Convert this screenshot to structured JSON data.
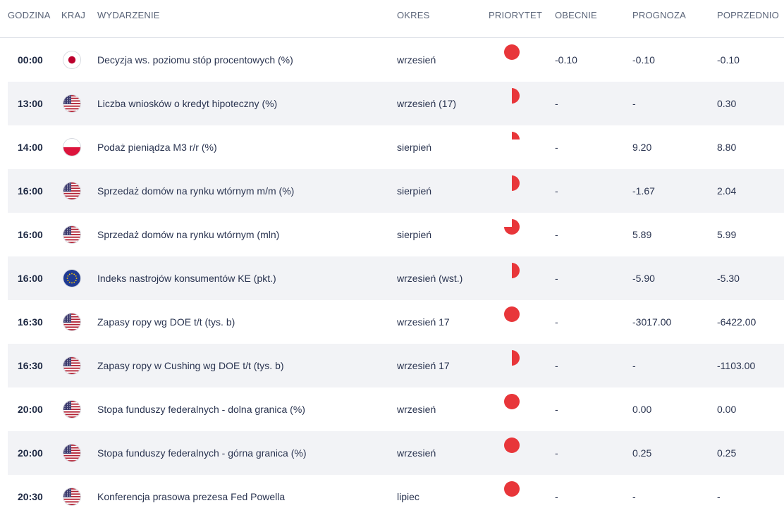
{
  "header": {
    "time": "GODZINA",
    "country": "KRAJ",
    "event": "WYDARZENIE",
    "period": "OKRES",
    "priority": "PRIORYTET",
    "actual": "OBECNIE",
    "forecast": "PROGNOZA",
    "previous": "POPRZEDNIO"
  },
  "colors": {
    "priority": "#e8363a",
    "row_alt": "#f2f3f6"
  },
  "rows": [
    {
      "time": "00:00",
      "country": "jp-flag",
      "event": "Decyzja ws. poziomu stóp procentowych (%)",
      "period": "wrzesień",
      "priority": 1.0,
      "actual": "-0.10",
      "forecast": "-0.10",
      "previous": "-0.10"
    },
    {
      "time": "13:00",
      "country": "us-flag",
      "event": "Liczba wniosków o kredyt hipoteczny (%)",
      "period": "wrzesień (17)",
      "priority": 0.5,
      "actual": "-",
      "forecast": "-",
      "previous": "0.30"
    },
    {
      "time": "14:00",
      "country": "pl-flag",
      "event": "Podaż pieniądza M3 r/r (%)",
      "period": "sierpień",
      "priority": 0.25,
      "actual": "-",
      "forecast": "9.20",
      "previous": "8.80"
    },
    {
      "time": "16:00",
      "country": "us-flag",
      "event": "Sprzedaż domów na rynku wtórnym m/m (%)",
      "period": "sierpień",
      "priority": 0.5,
      "actual": "-",
      "forecast": "-1.67",
      "previous": "2.04"
    },
    {
      "time": "16:00",
      "country": "us-flag",
      "event": "Sprzedaż domów na rynku wtórnym (mln)",
      "period": "sierpień",
      "priority": 0.75,
      "actual": "-",
      "forecast": "5.89",
      "previous": "5.99"
    },
    {
      "time": "16:00",
      "country": "eu-flag",
      "event": "Indeks nastrojów konsumentów KE (pkt.)",
      "period": "wrzesień (wst.)",
      "priority": 0.5,
      "actual": "-",
      "forecast": "-5.90",
      "previous": "-5.30"
    },
    {
      "time": "16:30",
      "country": "us-flag",
      "event": "Zapasy ropy wg DOE t/t (tys. b)",
      "period": "wrzesień 17",
      "priority": 1.0,
      "actual": "-",
      "forecast": "-3017.00",
      "previous": "-6422.00"
    },
    {
      "time": "16:30",
      "country": "us-flag",
      "event": "Zapasy ropy w Cushing wg DOE t/t (tys. b)",
      "period": "wrzesień 17",
      "priority": 0.5,
      "actual": "-",
      "forecast": "-",
      "previous": "-1103.00"
    },
    {
      "time": "20:00",
      "country": "us-flag",
      "event": "Stopa funduszy federalnych - dolna granica (%)",
      "period": "wrzesień",
      "priority": 1.0,
      "actual": "-",
      "forecast": "0.00",
      "previous": "0.00"
    },
    {
      "time": "20:00",
      "country": "us-flag",
      "event": "Stopa funduszy federalnych - górna granica (%)",
      "period": "wrzesień",
      "priority": 1.0,
      "actual": "-",
      "forecast": "0.25",
      "previous": "0.25"
    },
    {
      "time": "20:30",
      "country": "us-flag",
      "event": "Konferencja prasowa prezesa Fed Powella",
      "period": "lipiec",
      "priority": 1.0,
      "actual": "-",
      "forecast": "-",
      "previous": "-"
    }
  ]
}
